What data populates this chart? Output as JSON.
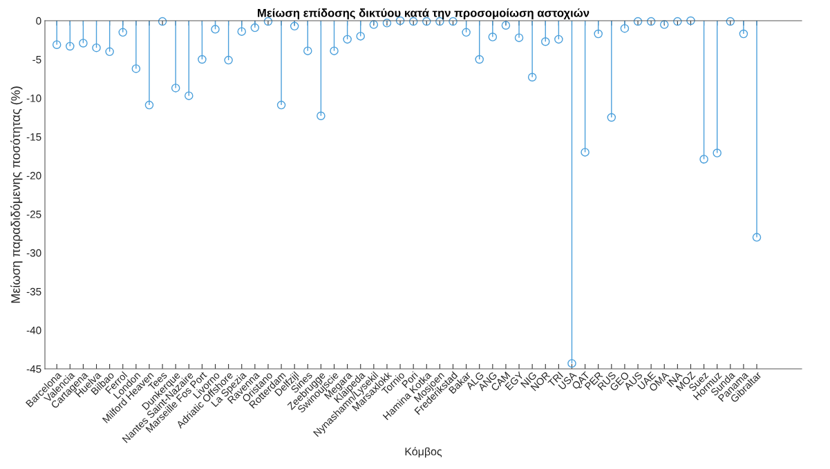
{
  "chart_data": {
    "type": "lollipop",
    "title": "Μείωση επίδοσης δικτύου κατά την προσομοίωση αστοχιών",
    "xlabel": "Κόμβος",
    "ylabel": "Μείωση παραδιδόμενης ποσότητας (%)",
    "categories": [
      "Barcelona",
      "Valencia",
      "Cartagena",
      "Huelva",
      "Bilbao",
      "Ferrol",
      "London",
      "Milford Heaven",
      "Tees",
      "Dunkerque",
      "Nantes Saint-Nazaire",
      "Marseille Fos Port",
      "Livorno",
      "Adriatic Offshore",
      "La Spezia",
      "Ravenna",
      "Oristano",
      "Rotterdam",
      "Delfzijl",
      "Sines",
      "Zeebrugge",
      "Swinoujscie",
      "Megara",
      "Klaipeda",
      "Nynashamn/Lysekil",
      "Marsaxlokk",
      "Tornio",
      "Pori",
      "Hamina Kotka",
      "Mosjoen",
      "Frederikstad",
      "Bakar",
      "ALG",
      "ANG",
      "CAM",
      "EGY",
      "NIG",
      "NOR",
      "TRI",
      "USA",
      "QAT",
      "PER",
      "RUS",
      "GEO",
      "AUS",
      "UAE",
      "OMA",
      "INA",
      "MOZ",
      "Suez",
      "Hormuz",
      "Sunda",
      "Panama",
      "Gibraltar"
    ],
    "values": [
      -3.1,
      -3.3,
      -2.9,
      -3.5,
      -4.0,
      -1.5,
      -6.2,
      -10.9,
      -0.1,
      -8.7,
      -9.7,
      -5.0,
      -1.1,
      -5.1,
      -1.4,
      -0.9,
      -0.1,
      -10.9,
      -0.7,
      -3.9,
      -12.3,
      -3.9,
      -2.4,
      -2.0,
      -0.5,
      -0.3,
      0,
      -0.1,
      -0.1,
      -0.1,
      -0.1,
      -1.5,
      -5.0,
      -2.1,
      -0.6,
      -2.2,
      -7.3,
      -2.7,
      -2.4,
      -44.3,
      -17.0,
      -1.7,
      -12.5,
      -1.0,
      -0.1,
      -0.1,
      -0.5,
      -0.1,
      0,
      -17.9,
      -17.1,
      -0.1,
      -1.7,
      -28.0
    ],
    "color": "#4a9fdb",
    "marker": "circle",
    "ylim": [
      -45,
      0
    ],
    "yticks": [
      -45,
      -40,
      -35,
      -30,
      -25,
      -20,
      -15,
      -10,
      -5,
      0
    ],
    "grid": false
  }
}
